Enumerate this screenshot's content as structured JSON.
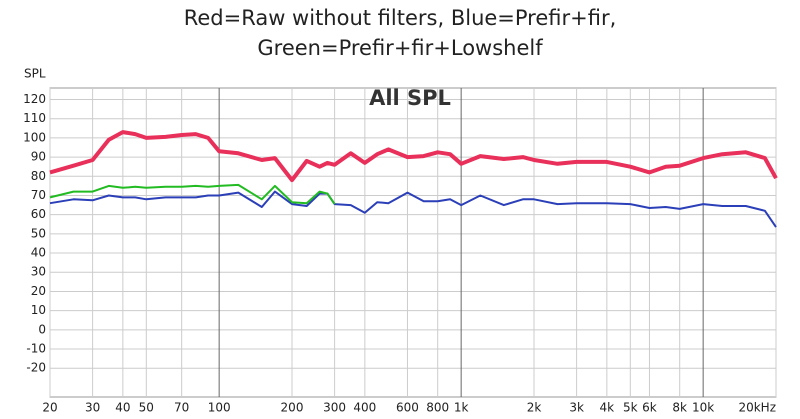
{
  "chart_data": {
    "type": "line",
    "title": [
      "Red=Raw without filters, Blue=Prefir+fir,",
      "Green=Prefir+fir+Lowshelf"
    ],
    "annotation": "All SPL",
    "y_label": "SPL",
    "x_scale": "log",
    "grid": true,
    "x": [
      20,
      25,
      30,
      35,
      40,
      45,
      50,
      60,
      70,
      80,
      90,
      100,
      120,
      150,
      170,
      200,
      230,
      260,
      280,
      300,
      350,
      400,
      450,
      500,
      600,
      700,
      800,
      900,
      1000,
      1200,
      1500,
      1800,
      2000,
      2500,
      3000,
      4000,
      5000,
      6000,
      7000,
      8000,
      10000,
      12000,
      15000,
      18000,
      20000
    ],
    "series": [
      {
        "name": "Red",
        "color": "#e8305a",
        "line_width": 4,
        "values": [
          82,
          85.5,
          88.5,
          99,
          103,
          102,
          100,
          100.5,
          101.5,
          102,
          100,
          93,
          92,
          88.5,
          89.5,
          78,
          88,
          85,
          87,
          86,
          92,
          87,
          91.5,
          94,
          90,
          90.5,
          92.5,
          91.5,
          86.5,
          90.5,
          89,
          90,
          88.5,
          86.5,
          87.5,
          87.5,
          85,
          82,
          85,
          85.5,
          89.5,
          91.5,
          92.5,
          89.5,
          79
        ]
      },
      {
        "name": "Blue",
        "color": "#2b3fb8",
        "line_width": 2,
        "values": [
          66,
          68,
          67.5,
          70,
          69,
          69,
          68,
          69,
          69,
          69,
          70,
          70,
          71.5,
          64,
          72,
          65.5,
          64.5,
          71,
          71,
          65.5,
          65,
          61,
          66.5,
          66,
          71.5,
          67,
          67,
          68,
          65,
          70,
          65,
          68,
          68,
          65.5,
          66,
          66,
          65.5,
          63.5,
          64,
          63,
          65.5,
          64.5,
          64.5,
          62,
          53.5
        ]
      },
      {
        "name": "Green",
        "color": "#22bb22",
        "line_width": 2,
        "values": [
          69,
          72,
          72,
          75,
          74,
          74.5,
          74,
          74.5,
          74.5,
          75,
          74.5,
          75,
          75.5,
          68,
          75,
          66.5,
          66,
          72,
          71,
          65.5,
          null,
          null,
          null,
          null,
          null,
          null,
          null,
          null,
          null,
          null,
          null,
          null,
          null,
          null,
          null,
          null,
          null,
          null,
          null,
          null,
          null,
          null,
          null,
          null,
          null
        ]
      }
    ],
    "xlim": [
      20,
      20000
    ],
    "xticks": [
      20,
      30,
      40,
      50,
      70,
      100,
      200,
      300,
      400,
      600,
      800,
      {
        "value": 1000,
        "label": "1k"
      },
      {
        "value": 2000,
        "label": "2k"
      },
      {
        "value": 3000,
        "label": "3k"
      },
      {
        "value": 4000,
        "label": "4k"
      },
      {
        "value": 5000,
        "label": "5k"
      },
      {
        "value": 6000,
        "label": "6k"
      },
      {
        "value": 8000,
        "label": "8k"
      },
      {
        "value": 10000,
        "label": "10k"
      },
      {
        "value": 20000,
        "label": "20kHz"
      }
    ],
    "ylim": [
      -35,
      126
    ],
    "yticks": [
      120,
      110,
      100,
      90,
      80,
      70,
      60,
      50,
      40,
      30,
      20,
      10,
      0,
      -10,
      -20
    ]
  }
}
